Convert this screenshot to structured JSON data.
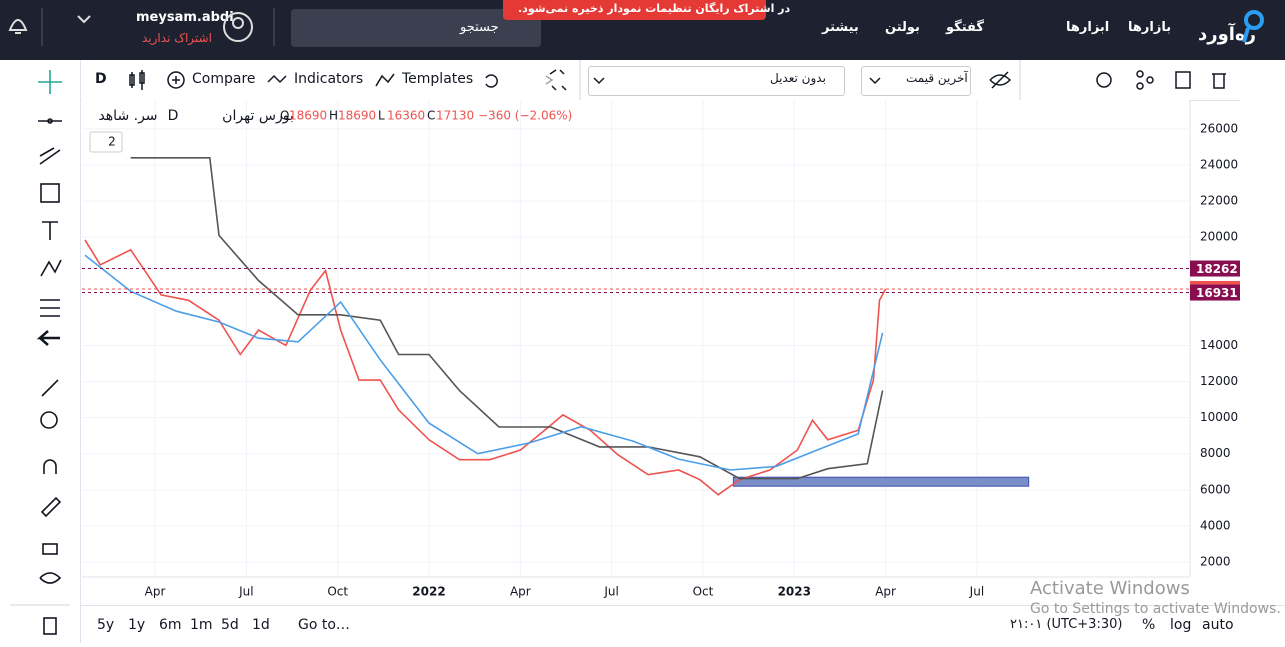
{
  "nav": {
    "logo": "ره‌آورد",
    "menu": [
      "بازارها",
      "ابزارها",
      "گفتگو",
      "بولتن",
      "بیشتر"
    ],
    "search": "جستجو",
    "banner": "در اشتراک رایگان تنظیمات نمودار ذخیره نمی‌شود.",
    "user": "meysam.abdi",
    "subscription": "اشتراک ندارید"
  },
  "toolbar": {
    "interval": "D",
    "compare": "Compare",
    "indicators": "Indicators",
    "templates": "Templates",
    "adjust": "بدون تعدیل",
    "price": "آخرین قیمت"
  },
  "legend": {
    "exchange": "بورس تهران",
    "interval": "D",
    "symbol": "سر. شاهد",
    "ohlc": [
      {
        "k": "O",
        "v": "18690"
      },
      {
        "k": "H",
        "v": "18690"
      },
      {
        "k": "L",
        "v": "16360"
      },
      {
        "k": "C",
        "v": "17130"
      }
    ],
    "change": "−360 (−2.06%)",
    "badge": "2"
  },
  "chart_data": {
    "type": "line",
    "xlim": [
      0.6,
      37
    ],
    "xticks": [
      {
        "value": 3,
        "label": "Apr"
      },
      {
        "value": 6,
        "label": "Jul"
      },
      {
        "value": 9,
        "label": "Oct"
      },
      {
        "value": 12,
        "label": "2022"
      },
      {
        "value": 15,
        "label": "Apr"
      },
      {
        "value": 18,
        "label": "Jul"
      },
      {
        "value": 21,
        "label": "Oct"
      },
      {
        "value": 24,
        "label": "2023"
      },
      {
        "value": 27,
        "label": "Apr"
      },
      {
        "value": 30,
        "label": "Jul"
      }
    ],
    "ylim": [
      1170,
      27600
    ],
    "yticks": [
      2000,
      4000,
      6000,
      8000,
      10000,
      12000,
      14000,
      20000,
      22000,
      24000,
      26000
    ],
    "grid": true,
    "series": [
      {
        "color": "#ef5350",
        "x": [
          0.7,
          1.2,
          2.2,
          3.2,
          4.1,
          5.1,
          5.8,
          6.4,
          7.3,
          8.1,
          8.6,
          9.1,
          9.7,
          10.4,
          11.0,
          12.0,
          13.0,
          14.0,
          15.0,
          15.8,
          16.4,
          17.3,
          18.2,
          19.2,
          20.2,
          20.9,
          21.5,
          22.2,
          23.2,
          24.1,
          24.6,
          25.1,
          26.1,
          26.6,
          26.8,
          27.0
        ],
        "values": [
          19850,
          18470,
          19300,
          16800,
          16500,
          15400,
          13500,
          14850,
          14000,
          17050,
          18150,
          14850,
          12080,
          12080,
          10430,
          8770,
          7670,
          7670,
          8200,
          9300,
          10150,
          9300,
          7950,
          6840,
          7100,
          6560,
          5730,
          6560,
          7100,
          8200,
          9860,
          8770,
          9300,
          12080,
          16500,
          17130
        ]
      },
      {
        "color": "#555555",
        "x": [
          2.2,
          4.8,
          5.1,
          6.4,
          7.7,
          9.1,
          10.4,
          11.0,
          12.0,
          13.0,
          14.3,
          16.0,
          17.6,
          19.2,
          20.9,
          22.2,
          24.1,
          25.1,
          26.4,
          26.9
        ],
        "values": [
          24400,
          24400,
          20100,
          17600,
          15700,
          15700,
          15400,
          13500,
          13500,
          11500,
          9480,
          9480,
          8380,
          8380,
          7830,
          6620,
          6620,
          7170,
          7450,
          11500
        ]
      },
      {
        "color": "#4a9fe8",
        "x": [
          0.7,
          2.2,
          3.7,
          5.1,
          6.4,
          7.7,
          9.1,
          10.4,
          12.0,
          13.6,
          15.3,
          17.0,
          18.7,
          20.2,
          21.9,
          23.4,
          24.9,
          26.1,
          26.9
        ],
        "values": [
          19000,
          17000,
          15900,
          15300,
          14400,
          14200,
          16400,
          13200,
          9700,
          8000,
          8600,
          9500,
          8700,
          7700,
          7100,
          7300,
          8300,
          9100,
          14700
        ]
      }
    ],
    "price_labels": [
      {
        "value": 18262,
        "color": "#880e4f"
      },
      {
        "value": 17130,
        "color": "#ef5350"
      },
      {
        "value": 16931,
        "color": "#880e4f"
      }
    ],
    "zone": {
      "x": [
        22.0,
        31.7
      ],
      "y": [
        6200,
        6700
      ],
      "color": "#7b8ec8"
    }
  },
  "bottom": {
    "ranges": [
      "5y",
      "1y",
      "6m",
      "1m",
      "5d",
      "1d"
    ],
    "goto": "Go to…",
    "clock": "۲۱:۰۱ (UTC+3:30)",
    "percent": "%",
    "log": "log",
    "auto": "auto"
  },
  "watermark": {
    "title": "Activate Windows",
    "text": "Go to Settings to activate Windows."
  }
}
